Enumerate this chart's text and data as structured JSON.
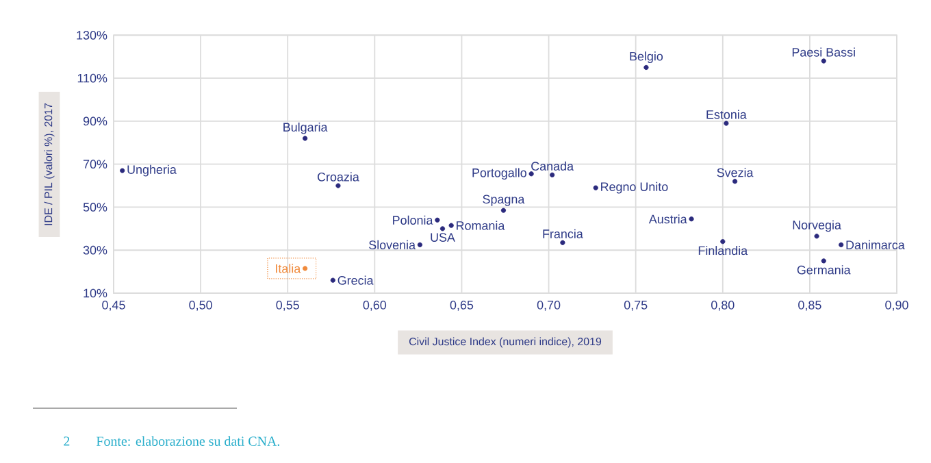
{
  "chart_data": {
    "type": "scatter",
    "xlabel": "Civil Justice Index (numeri indice), 2019",
    "ylabel": "IDE / PIL (valori %), 2017",
    "series": [
      {
        "color": "#2b2a7d",
        "x": [
          0.455,
          0.56,
          0.579,
          0.636,
          0.639,
          0.644,
          0.626,
          0.576,
          0.674,
          0.69,
          0.702,
          0.727,
          0.708,
          0.756,
          0.802,
          0.807,
          0.782,
          0.8,
          0.858,
          0.854,
          0.868,
          0.858
        ],
        "values": [
          67,
          82,
          60,
          44,
          40,
          41.5,
          32.5,
          16,
          48.5,
          65.5,
          65,
          59,
          33.5,
          115,
          89,
          62,
          44.5,
          34,
          118,
          36.5,
          32.5,
          25
        ]
      },
      {
        "color": "#f08a3c",
        "x": [
          0.56
        ],
        "values": [
          21.5
        ]
      }
    ],
    "annotations": [
      {
        "text": "Ungheria",
        "x": 0.455,
        "y": 67
      },
      {
        "text": "Bulgaria",
        "x": 0.56,
        "y": 82
      },
      {
        "text": "Croazia",
        "x": 0.579,
        "y": 60
      },
      {
        "text": "Polonia",
        "x": 0.636,
        "y": 44
      },
      {
        "text": "USA",
        "x": 0.639,
        "y": 40
      },
      {
        "text": "Romania",
        "x": 0.644,
        "y": 41.5
      },
      {
        "text": "Slovenia",
        "x": 0.626,
        "y": 32.5
      },
      {
        "text": "Grecia",
        "x": 0.576,
        "y": 16
      },
      {
        "text": "Spagna",
        "x": 0.674,
        "y": 48.5
      },
      {
        "text": "Portogallo",
        "x": 0.69,
        "y": 65.5
      },
      {
        "text": "Canada",
        "x": 0.702,
        "y": 65
      },
      {
        "text": "Regno Unito",
        "x": 0.727,
        "y": 59
      },
      {
        "text": "Francia",
        "x": 0.708,
        "y": 33.5
      },
      {
        "text": "Belgio",
        "x": 0.756,
        "y": 115
      },
      {
        "text": "Estonia",
        "x": 0.802,
        "y": 89
      },
      {
        "text": "Svezia",
        "x": 0.807,
        "y": 62
      },
      {
        "text": "Austria",
        "x": 0.782,
        "y": 44.5
      },
      {
        "text": "Finlandia",
        "x": 0.8,
        "y": 34
      },
      {
        "text": "Paesi Bassi",
        "x": 0.858,
        "y": 118
      },
      {
        "text": "Norvegia",
        "x": 0.854,
        "y": 36.5
      },
      {
        "text": "Danimarca",
        "x": 0.868,
        "y": 32.5
      },
      {
        "text": "Germania",
        "x": 0.858,
        "y": 25
      },
      {
        "text": "Italia",
        "x": 0.56,
        "y": 21.5
      },
      "2",
      "Fonte: elaborazione su dati CNA."
    ],
    "xlim": [
      0.45,
      0.9
    ],
    "ylim": [
      10,
      130
    ],
    "xticks": [
      {
        "value": 0.45,
        "label": "0,45"
      },
      {
        "value": 0.5,
        "label": "0,50"
      },
      {
        "value": 0.55,
        "label": "0,55"
      },
      {
        "value": 0.6,
        "label": "0,60"
      },
      {
        "value": 0.65,
        "label": "0,65"
      },
      {
        "value": 0.7,
        "label": "0,70"
      },
      {
        "value": 0.75,
        "label": "0,75"
      },
      {
        "value": 0.8,
        "label": "0,80"
      },
      {
        "value": 0.85,
        "label": "0,85"
      },
      {
        "value": 0.9,
        "label": "0,90"
      }
    ],
    "yticks": [
      {
        "value": 10,
        "label": "10%"
      },
      {
        "value": 30,
        "label": "30%"
      },
      {
        "value": 50,
        "label": "50%"
      },
      {
        "value": 70,
        "label": "70%"
      },
      {
        "value": 90,
        "label": "90%"
      },
      {
        "value": 110,
        "label": "110%"
      },
      {
        "value": 130,
        "label": "130%"
      }
    ],
    "grid": true
  }
}
